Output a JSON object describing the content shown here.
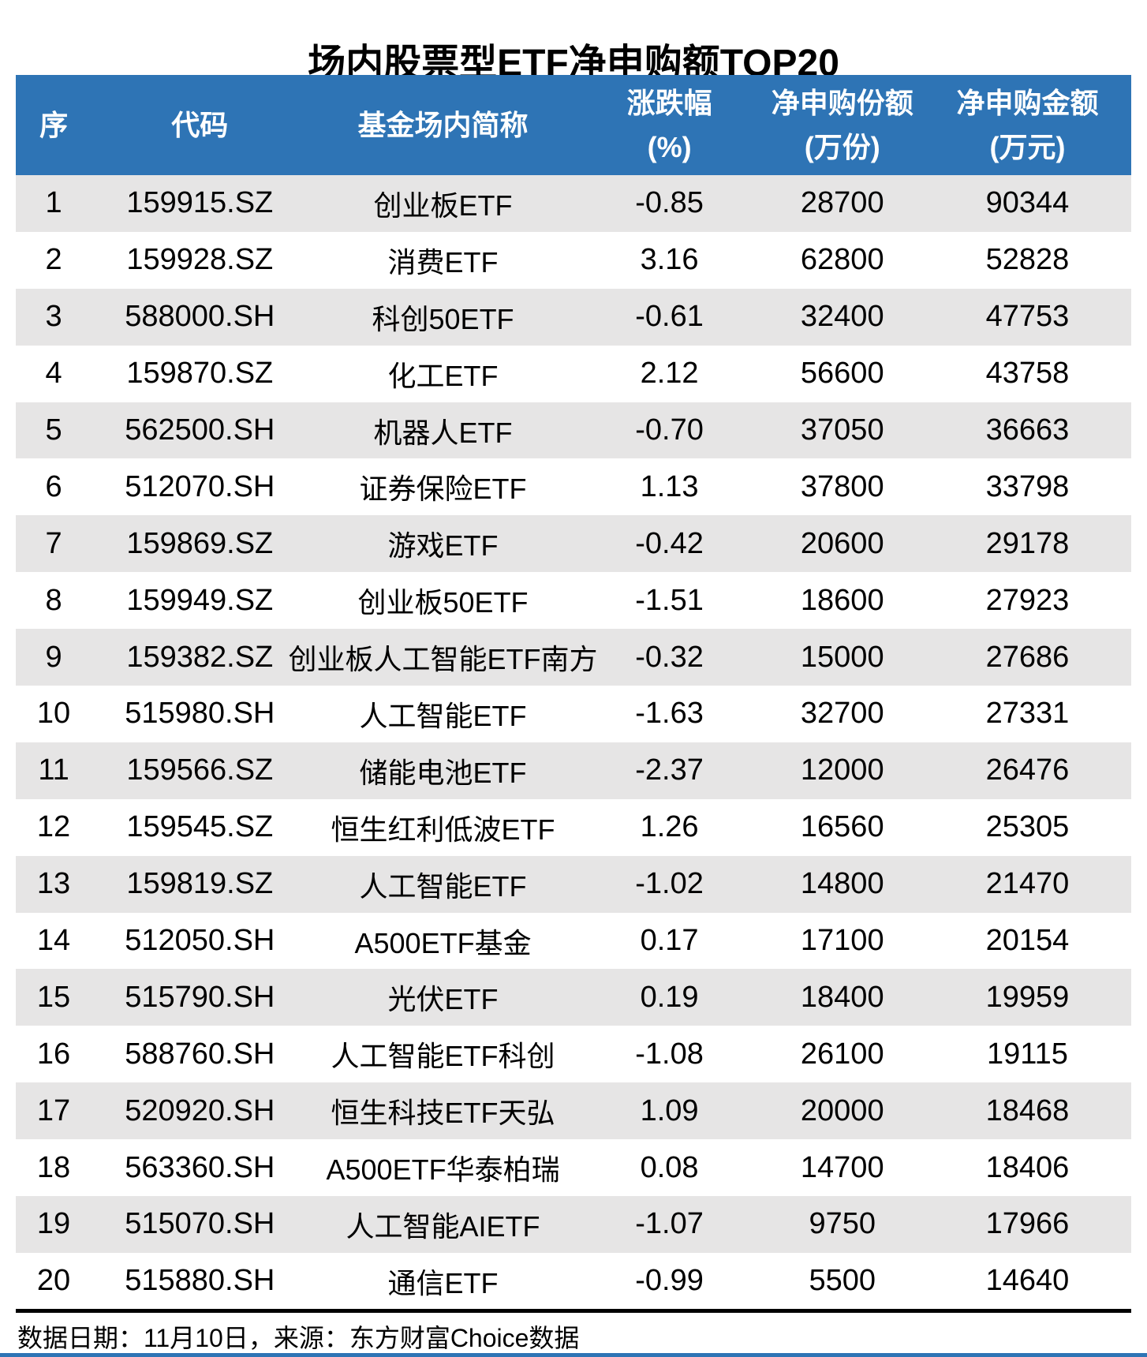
{
  "title": "场内股票型ETF净申购额TOP20",
  "footer": {
    "note": "数据日期：11月10日，来源：东方财富Choice数据"
  },
  "colors": {
    "header_bg": "#2E74B5",
    "row_alt_bg": "#E6E5E5",
    "divider": "#000000",
    "bottom_bar": "#2E74B5",
    "header_text": "#FFFFFF",
    "body_text": "#000000"
  },
  "chart_data": {
    "type": "table",
    "title": "场内股票型ETF净申购额TOP20",
    "columns": [
      {
        "key": "rank",
        "label": "序",
        "unit": ""
      },
      {
        "key": "code",
        "label": "代码",
        "unit": ""
      },
      {
        "key": "name",
        "label": "基金场内简称",
        "unit": ""
      },
      {
        "key": "change",
        "label": "涨跌幅",
        "unit": "(%)"
      },
      {
        "key": "shares",
        "label": "净申购份额",
        "unit": "(万份)"
      },
      {
        "key": "amount",
        "label": "净申购金额",
        "unit": "(万元)"
      }
    ],
    "rows": [
      [
        "1",
        "159915.SZ",
        "创业板ETF",
        "-0.85",
        "28700",
        "90344"
      ],
      [
        "2",
        "159928.SZ",
        "消费ETF",
        "3.16",
        "62800",
        "52828"
      ],
      [
        "3",
        "588000.SH",
        "科创50ETF",
        "-0.61",
        "32400",
        "47753"
      ],
      [
        "4",
        "159870.SZ",
        "化工ETF",
        "2.12",
        "56600",
        "43758"
      ],
      [
        "5",
        "562500.SH",
        "机器人ETF",
        "-0.70",
        "37050",
        "36663"
      ],
      [
        "6",
        "512070.SH",
        "证券保险ETF",
        "1.13",
        "37800",
        "33798"
      ],
      [
        "7",
        "159869.SZ",
        "游戏ETF",
        "-0.42",
        "20600",
        "29178"
      ],
      [
        "8",
        "159949.SZ",
        "创业板50ETF",
        "-1.51",
        "18600",
        "27923"
      ],
      [
        "9",
        "159382.SZ",
        "创业板人工智能ETF南方",
        "-0.32",
        "15000",
        "27686"
      ],
      [
        "10",
        "515980.SH",
        "人工智能ETF",
        "-1.63",
        "32700",
        "27331"
      ],
      [
        "11",
        "159566.SZ",
        "储能电池ETF",
        "-2.37",
        "12000",
        "26476"
      ],
      [
        "12",
        "159545.SZ",
        "恒生红利低波ETF",
        "1.26",
        "16560",
        "25305"
      ],
      [
        "13",
        "159819.SZ",
        "人工智能ETF",
        "-1.02",
        "14800",
        "21470"
      ],
      [
        "14",
        "512050.SH",
        "A500ETF基金",
        "0.17",
        "17100",
        "20154"
      ],
      [
        "15",
        "515790.SH",
        "光伏ETF",
        "0.19",
        "18400",
        "19959"
      ],
      [
        "16",
        "588760.SH",
        "人工智能ETF科创",
        "-1.08",
        "26100",
        "19115"
      ],
      [
        "17",
        "520920.SH",
        "恒生科技ETF天弘",
        "1.09",
        "20000",
        "18468"
      ],
      [
        "18",
        "563360.SH",
        "A500ETF华泰柏瑞",
        "0.08",
        "14700",
        "18406"
      ],
      [
        "19",
        "515070.SH",
        "人工智能AIETF",
        "-1.07",
        "9750",
        "17966"
      ],
      [
        "20",
        "515880.SH",
        "通信ETF",
        "-0.99",
        "5500",
        "14640"
      ]
    ]
  }
}
